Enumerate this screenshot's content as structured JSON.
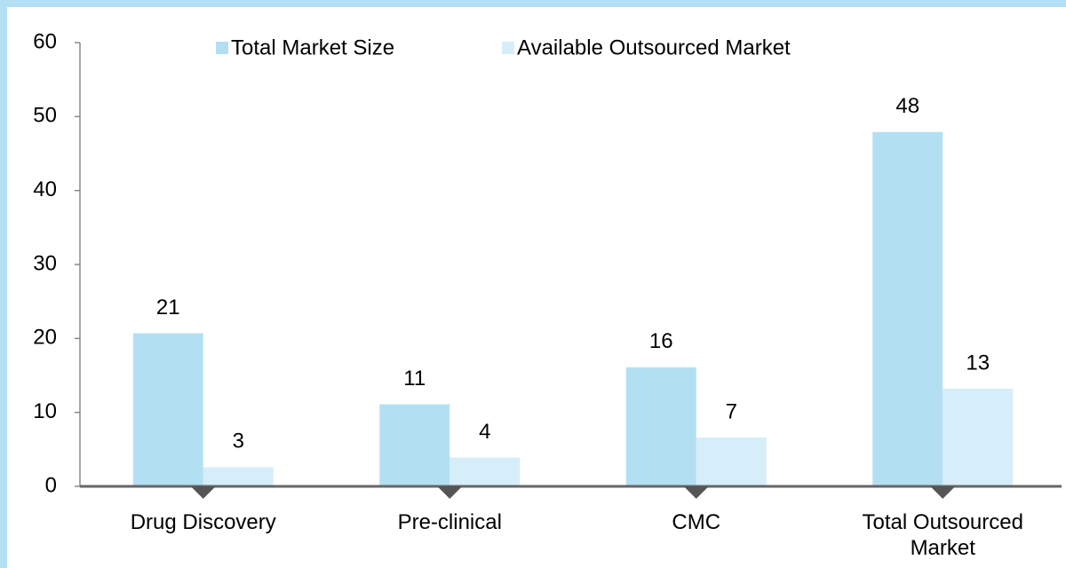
{
  "chart_data": {
    "type": "bar",
    "categories": [
      "Drug Discovery",
      "Pre-clinical",
      "CMC",
      "Total Outsourced Market"
    ],
    "series": [
      {
        "name": "Total Market Size",
        "color": "#b3dff3",
        "values": [
          20.7,
          11.1,
          16.1,
          47.9
        ],
        "value_labels": [
          "21",
          "11",
          "16",
          "48"
        ]
      },
      {
        "name": "Available Outsourced Market",
        "color": "#d6eef9",
        "values": [
          2.6,
          3.9,
          6.6,
          13.2
        ],
        "value_labels": [
          "3",
          "4",
          "7",
          "13"
        ]
      }
    ],
    "ylim": [
      0,
      60
    ],
    "yticks": [
      0,
      10,
      20,
      30,
      40,
      50,
      60
    ],
    "grid": false,
    "legend": "top"
  }
}
